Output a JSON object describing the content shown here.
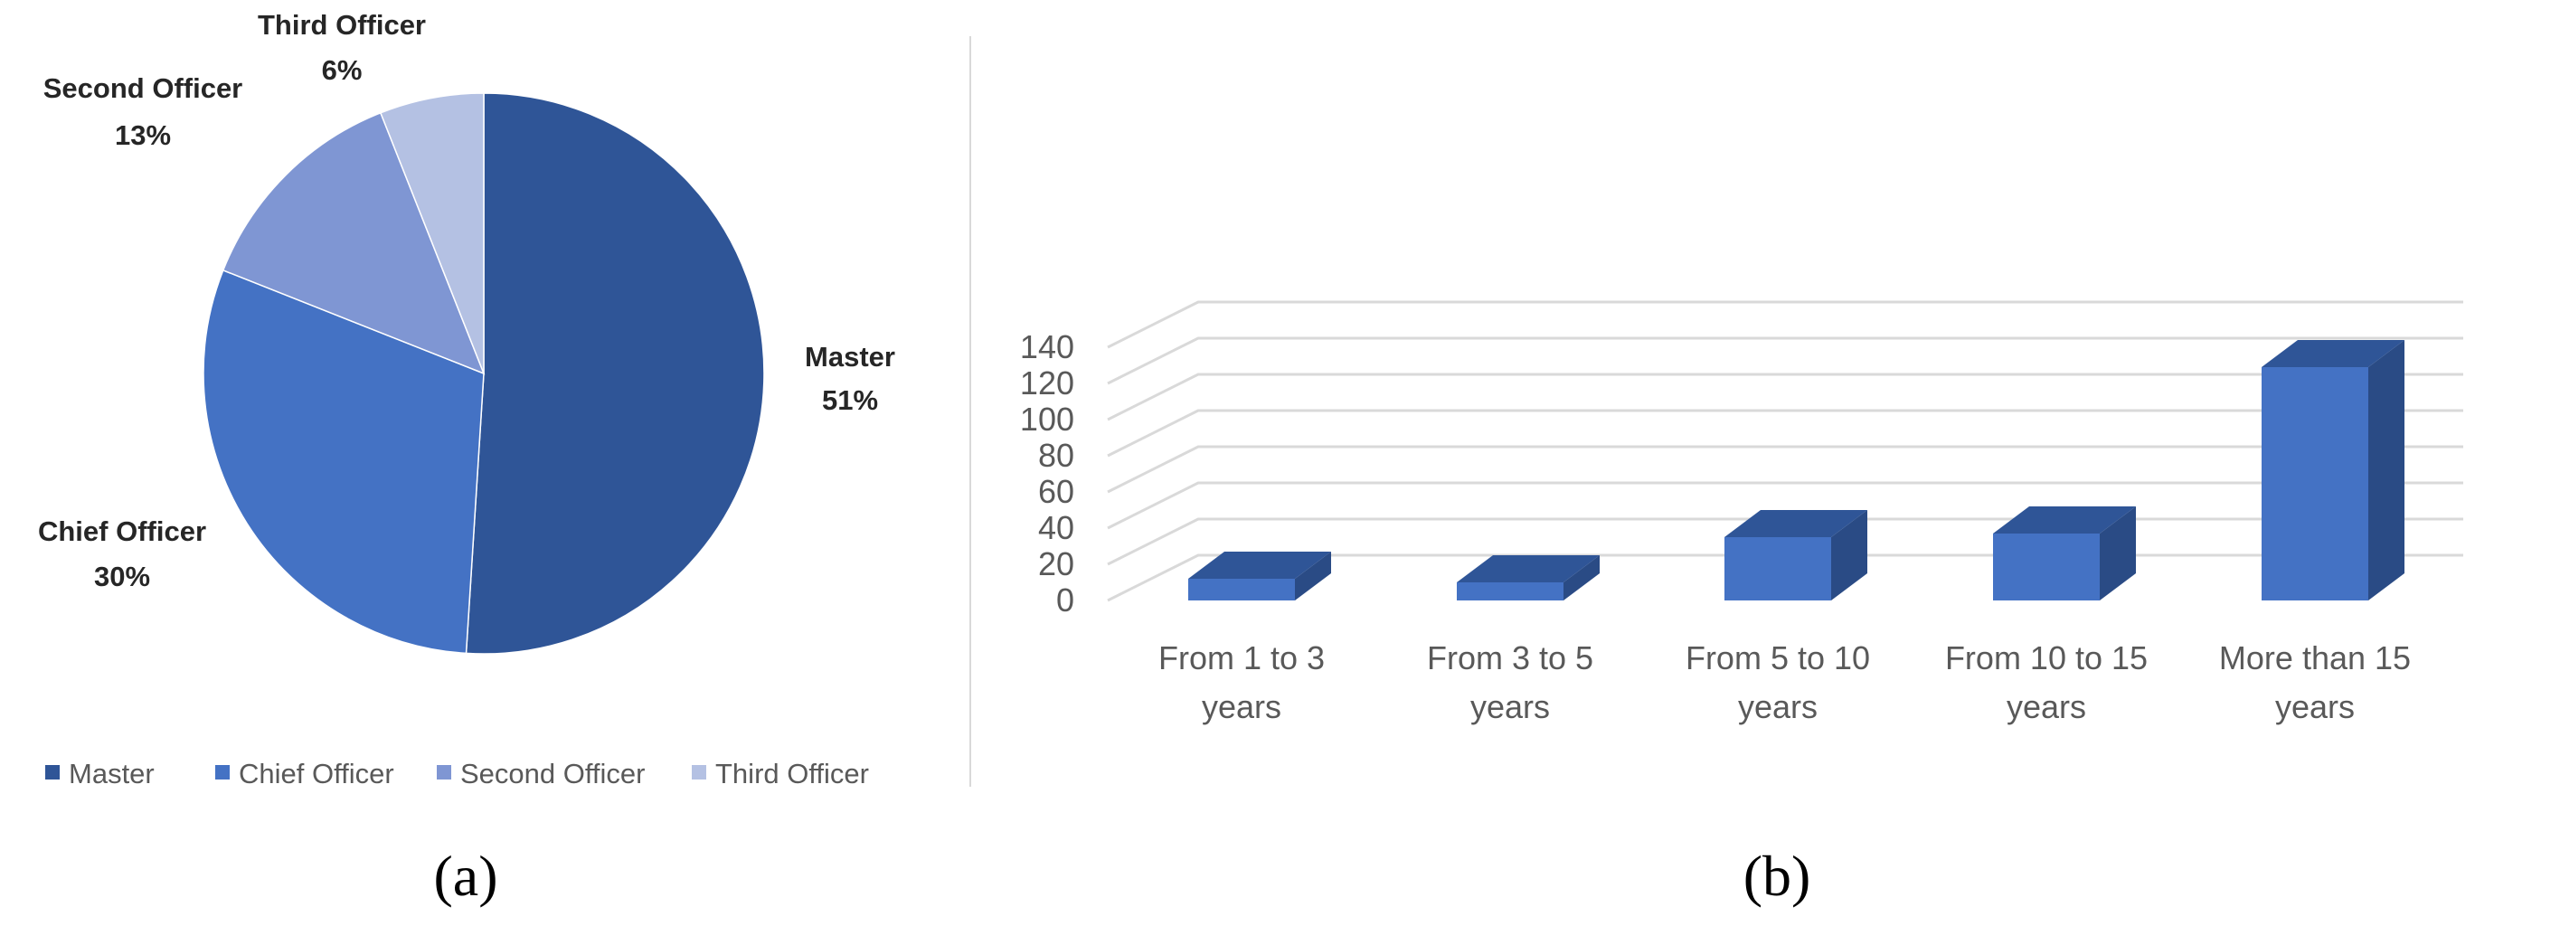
{
  "figure": {
    "panel_a_label": "(a)",
    "panel_b_label": "(b)"
  },
  "chart_data": [
    {
      "type": "pie",
      "title": "",
      "categories": [
        "Master",
        "Chief Officer",
        "Second Officer",
        "Third Officer"
      ],
      "values": [
        51,
        30,
        13,
        6
      ],
      "value_labels": [
        "51%",
        "30%",
        "13%",
        "6%"
      ],
      "colors": [
        "#2f5597",
        "#4472c4",
        "#7f96d3",
        "#b4c1e3"
      ],
      "legend_placement": "bottom"
    },
    {
      "type": "bar",
      "style": "3d-column",
      "title": "",
      "xlabel": "",
      "ylabel": "",
      "categories": [
        [
          "From 1 to 3",
          "years"
        ],
        [
          "From 3 to 5",
          "years"
        ],
        [
          "From 5 to 10",
          "years"
        ],
        [
          "From 10 to 15",
          "years"
        ],
        [
          "More than 15",
          "years"
        ]
      ],
      "values": [
        12,
        10,
        35,
        37,
        129
      ],
      "ylim": [
        0,
        140
      ],
      "yticks": [
        "0",
        "20",
        "40",
        "60",
        "80",
        "100",
        "120",
        "140"
      ],
      "grid": true,
      "colors": {
        "front": "#4472c4",
        "top": "#2f5597",
        "side": "#2a4b85"
      }
    }
  ]
}
